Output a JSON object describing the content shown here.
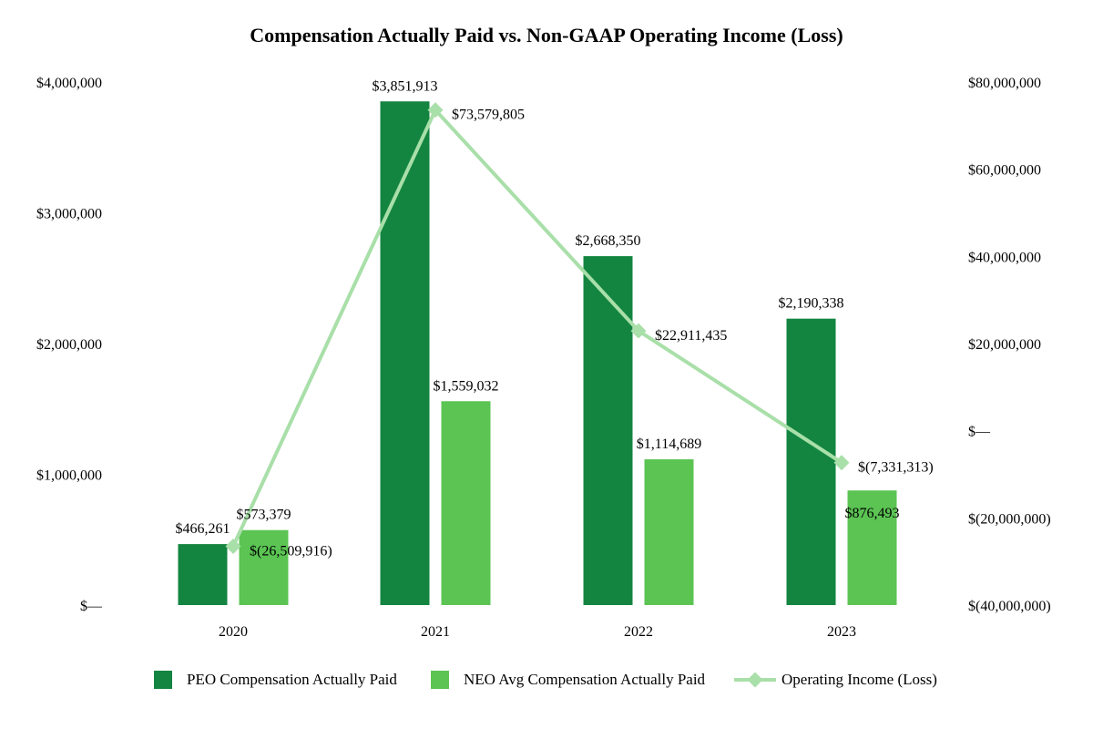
{
  "chart_data": {
    "type": "bar",
    "title": "Compensation Actually Paid vs. Non-GAAP Operating Income (Loss)",
    "categories": [
      "2020",
      "2021",
      "2022",
      "2023"
    ],
    "series": [
      {
        "name": "PEO Compensation Actually Paid",
        "kind": "bar",
        "axis": "left",
        "color": "#138541",
        "values": [
          466261,
          3851913,
          2668350,
          2190338
        ],
        "labels": [
          "$466,261",
          "$3,851,913",
          "$2,668,350",
          "$2,190,338"
        ]
      },
      {
        "name": "NEO Avg Compensation Actually Paid",
        "kind": "bar",
        "axis": "left",
        "color": "#5bc453",
        "values": [
          573379,
          1559032,
          1114689,
          876493
        ],
        "labels": [
          "$573,379",
          "$1,559,032",
          "$1,114,689",
          "$876,493"
        ]
      },
      {
        "name": "Operating Income (Loss)",
        "kind": "line",
        "axis": "right",
        "color": "#a9dfa9",
        "values": [
          -26509916,
          73579805,
          22911435,
          -7331313
        ],
        "labels": [
          "$(26,509,916)",
          "$73,579,805",
          "$22,911,435",
          "$(7,331,313)"
        ]
      }
    ],
    "left_axis": {
      "ylim": [
        0,
        4000000
      ],
      "ticks": [
        0,
        1000000,
        2000000,
        3000000,
        4000000
      ],
      "tick_labels": [
        "$—",
        "$1,000,000",
        "$2,000,000",
        "$3,000,000",
        "$4,000,000"
      ]
    },
    "right_axis": {
      "ylim": [
        -40000000,
        80000000
      ],
      "ticks": [
        -40000000,
        -20000000,
        0,
        20000000,
        40000000,
        60000000,
        80000000
      ],
      "tick_labels": [
        "$(40,000,000)",
        "$(20,000,000)",
        "$—",
        "$20,000,000",
        "$40,000,000",
        "$60,000,000",
        "$80,000,000"
      ]
    },
    "legend": {
      "position": "bottom",
      "entries": [
        "PEO Compensation Actually Paid",
        "NEO Avg Compensation Actually Paid",
        "Operating Income (Loss)"
      ]
    },
    "grid": false
  }
}
